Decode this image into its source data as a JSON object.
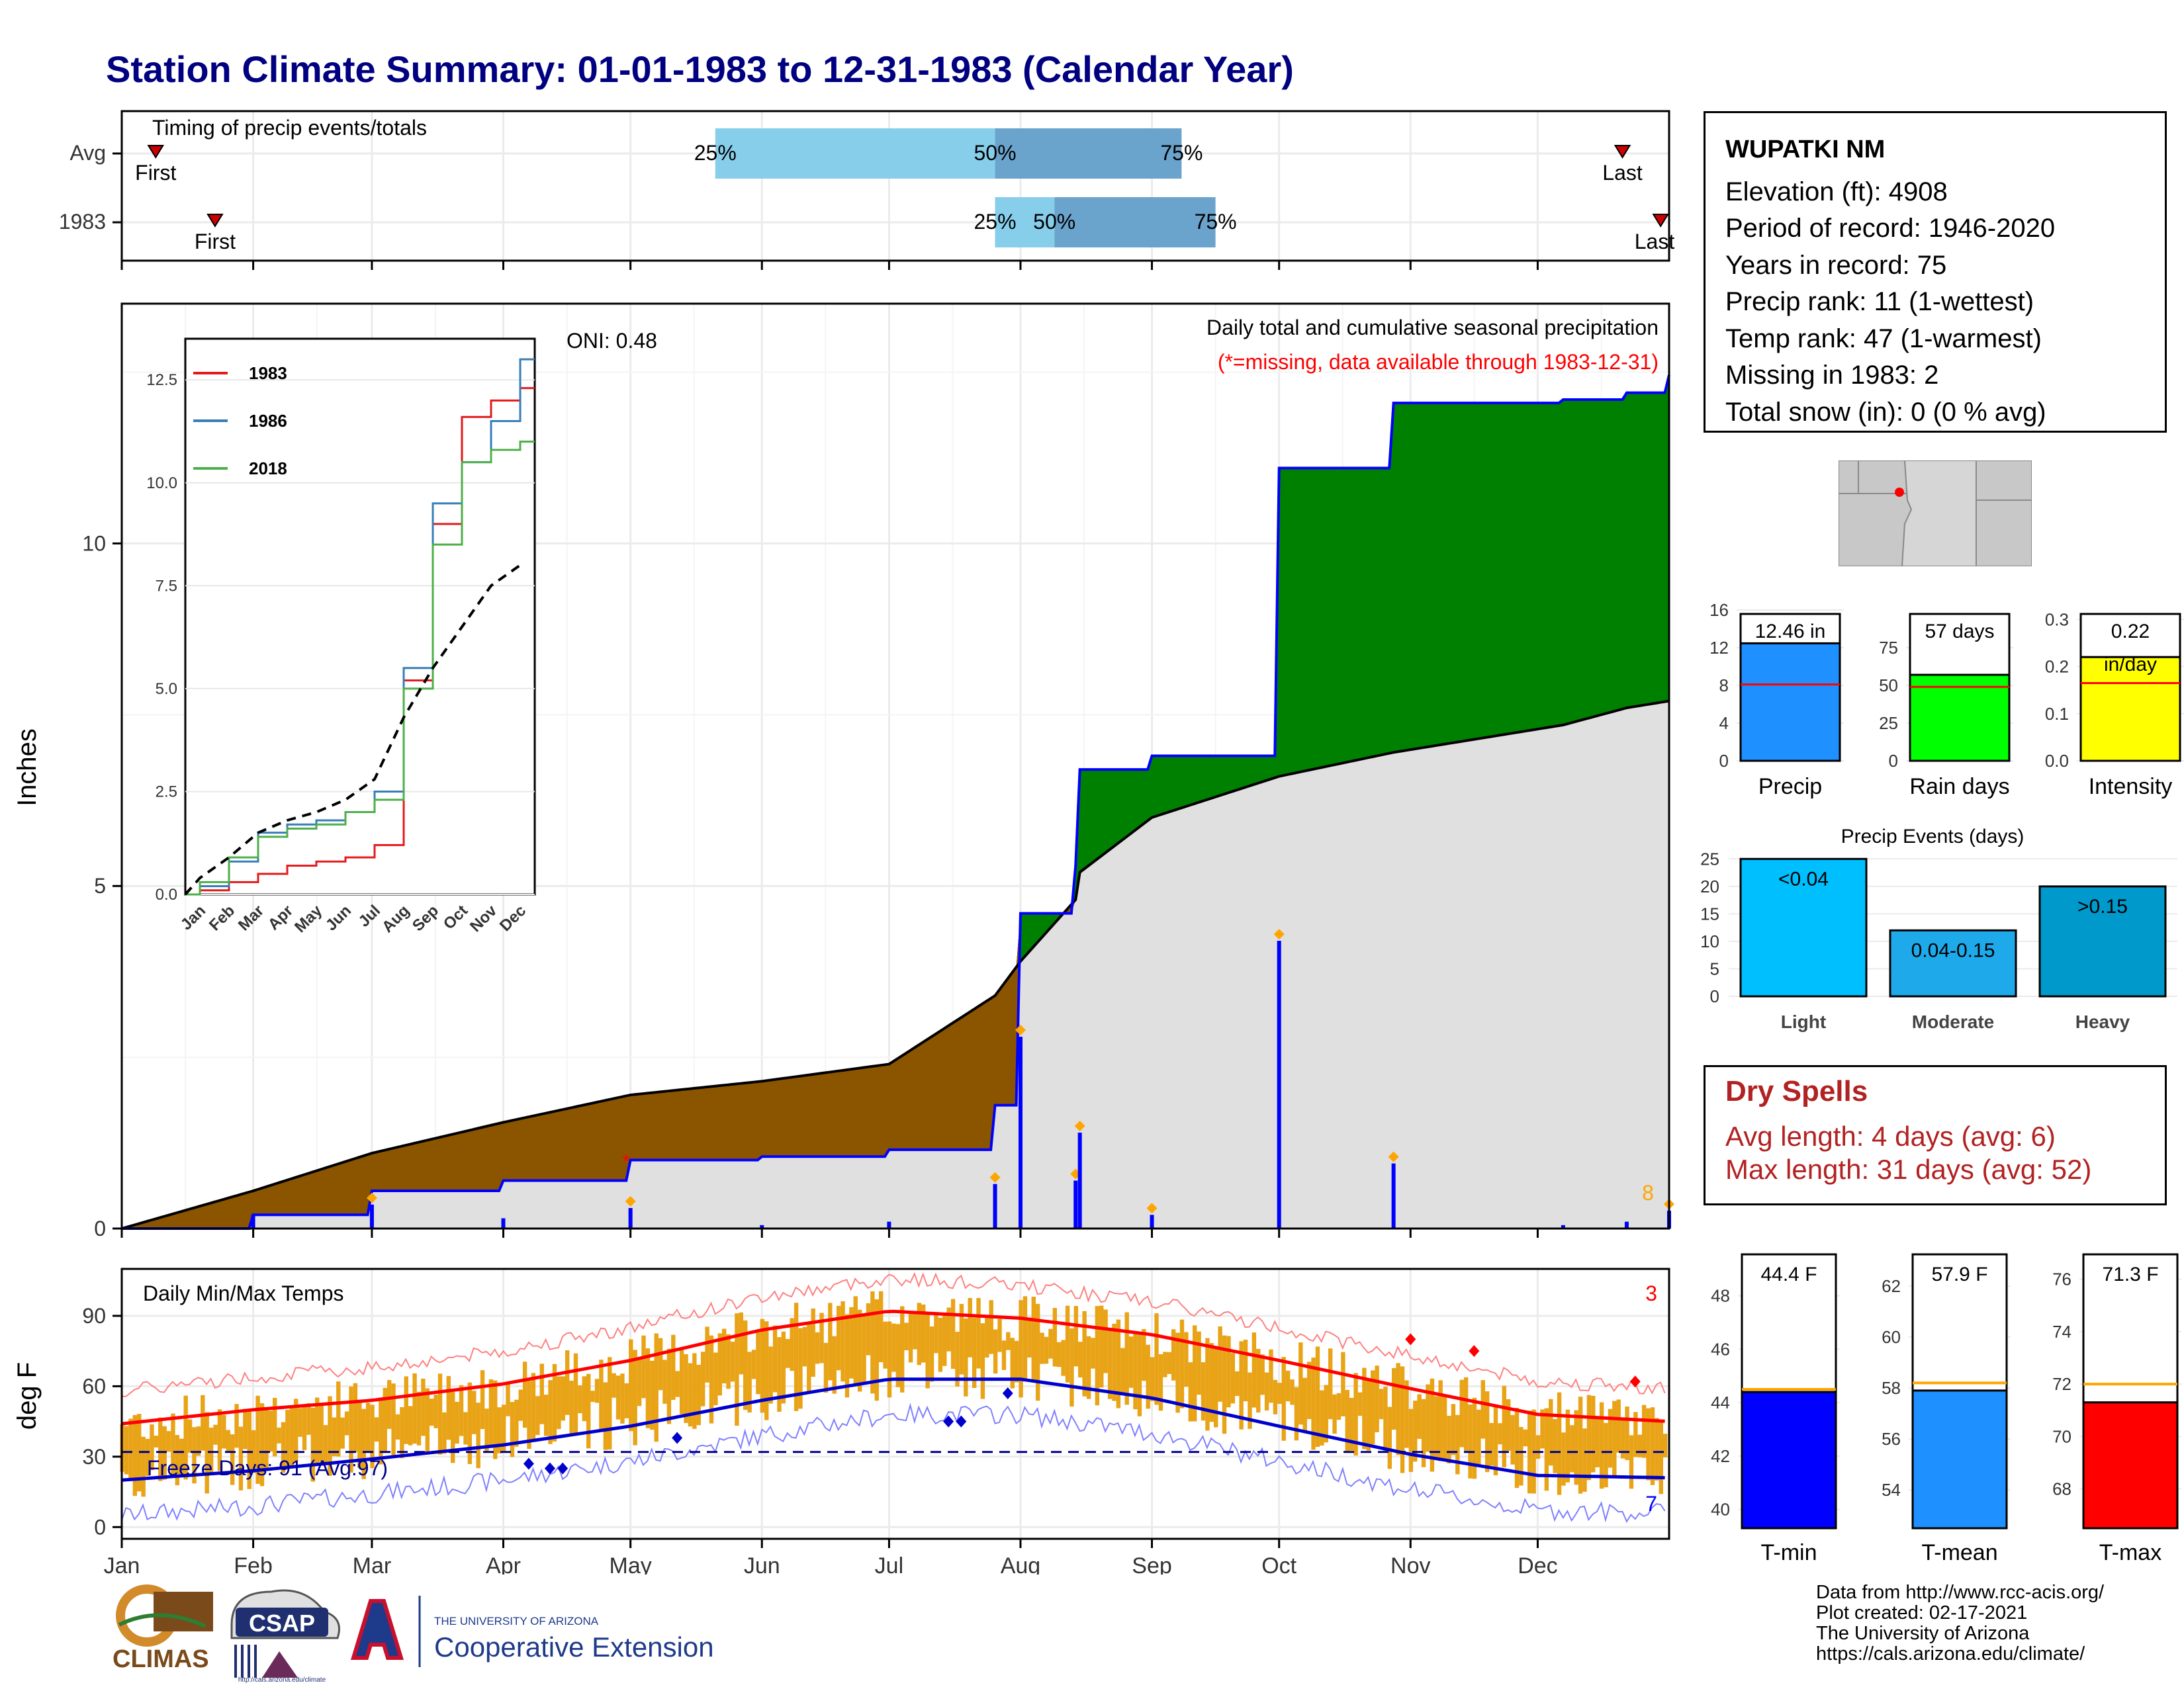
{
  "title": "Station Climate Summary: 01-01-1983 to 12-31-1983 (Calendar Year)",
  "station": {
    "name": "WUPATKI NM",
    "lines": [
      "Elevation (ft): 4908",
      "Period of record: 1946-2020",
      "Years in record: 75",
      "Precip rank: 11 (1-wettest)",
      "Temp rank: 47 (1-warmest)",
      "Missing in 1983: 2",
      "Total snow (in): 0 (0 % avg)"
    ]
  },
  "timing": {
    "title": "Timing of precip events/totals",
    "rows": [
      {
        "label": "Avg",
        "first_doy": 8,
        "p25_doy": 140,
        "p50_doy": 206,
        "p75_doy": 250,
        "last_doy": 354,
        "first_label": "First",
        "last_label": "Last"
      },
      {
        "label": "1983",
        "first_doy": 22,
        "p25_doy": 206,
        "p50_doy": 220,
        "p75_doy": 258,
        "last_doy": 363,
        "first_label": "First",
        "last_label": "Last"
      }
    ],
    "pct_labels": [
      "25%",
      "50%",
      "75%"
    ]
  },
  "precip_main": {
    "ylabel": "Inches",
    "annotation_title": "Daily total and cumulative seasonal precipitation",
    "annotation_missing": "(*=missing, data available through 1983-12-31)",
    "oni": "ONI: 0.48",
    "count_label": "8",
    "colors": {
      "deficit": "#8B5500",
      "surplus": "#008000",
      "normal": "#e0e0e0",
      "obs": "#0000ff",
      "marker": "#FFA500"
    }
  },
  "temps_main": {
    "title": "Daily Min/Max Temps",
    "ylabel": "deg F",
    "freeze_label": "Freeze Days: 91 (Avg:97)",
    "count_hot": "3",
    "count_cold": "7"
  },
  "months": [
    "Jan",
    "Feb",
    "Mar",
    "Apr",
    "May",
    "Jun",
    "Jul",
    "Aug",
    "Sep",
    "Oct",
    "Nov",
    "Dec"
  ],
  "inset_chart": {
    "legend": [
      "1983",
      "1986",
      "2018"
    ],
    "months": [
      "Jan",
      "Feb",
      "Mar",
      "Apr",
      "May",
      "Jun",
      "Jul",
      "Aug",
      "Sep",
      "Oct",
      "Nov",
      "Dec"
    ],
    "yticks": [
      "0.0",
      "2.5",
      "5.0",
      "7.5",
      "10.0",
      "12.5"
    ]
  },
  "mini_bars": {
    "precip": {
      "label": "Precip",
      "value_label": "12.46 in",
      "value": 12.46,
      "avg": 8.1,
      "ylim": [
        0,
        16
      ],
      "ticks": [
        0,
        4,
        8,
        12,
        16
      ],
      "color": "#1e90ff"
    },
    "raindays": {
      "label": "Rain days",
      "value_label": "57 days",
      "value": 57,
      "avg": 49,
      "ylim": [
        0,
        100
      ],
      "ticks": [
        0,
        25,
        50,
        75
      ],
      "color": "#00ff00"
    },
    "intensity": {
      "label": "Intensity",
      "value_label": "0.22",
      "value_label2": "in/day",
      "value": 0.22,
      "avg": 0.165,
      "ylim": [
        0,
        0.32
      ],
      "ticks": [
        "0.0",
        "0.1",
        "0.2",
        "0.3"
      ],
      "color": "#ffff00"
    }
  },
  "events": {
    "title": "Precip Events (days)",
    "categories": [
      "Light",
      "Moderate",
      "Heavy"
    ],
    "values": [
      25,
      12,
      20
    ],
    "labels": [
      "<0.04",
      "0.04-0.15",
      ">0.15"
    ],
    "yticks": [
      "0",
      "5",
      "10",
      "15",
      "20",
      "25"
    ],
    "colors": [
      "#00bfff",
      "#1eaaea",
      "#0099cc"
    ]
  },
  "dry": {
    "title": "Dry Spells",
    "avg": "Avg length: 4 days (avg: 6)",
    "max": "Max length: 31 days (avg: 52)"
  },
  "temp_bars": {
    "tmin": {
      "label": "T-min",
      "value_label": "44.4 F",
      "value": 44.4,
      "avg": 44.5,
      "ylim": [
        39.3,
        49.7
      ],
      "ticks": [
        "40",
        "42",
        "44",
        "46",
        "48"
      ],
      "color": "#0000ff"
    },
    "tmean": {
      "label": "T-mean",
      "value_label": "57.9 F",
      "value": 57.9,
      "avg": 58.2,
      "ylim": [
        52.5,
        63.4
      ],
      "ticks": [
        "54",
        "56",
        "58",
        "60",
        "62"
      ],
      "color": "#1e90ff"
    },
    "tmax": {
      "label": "T-max",
      "value_label": "71.3 F",
      "value": 71.3,
      "avg": 72.0,
      "ylim": [
        66.5,
        77.1
      ],
      "ticks": [
        "68",
        "70",
        "72",
        "74",
        "76"
      ],
      "color": "#ff0000"
    }
  },
  "logos": {
    "climas": "CLIMAS",
    "csap": "CSAP",
    "csap_url": "http://cals.arizona.edu/climate",
    "ua_small": "THE UNIVERSITY OF ARIZONA",
    "ua_big": "Cooperative Extension"
  },
  "credits": [
    "Data from http://www.rcc-acis.org/",
    "Plot created: 02-17-2021",
    "The University of Arizona",
    "https://cals.arizona.edu/climate/"
  ],
  "chart_data": [
    {
      "type": "area",
      "title": "Daily total and cumulative seasonal precipitation",
      "ylabel": "Inches",
      "ylim": [
        0,
        13.5
      ],
      "x": [
        0,
        31,
        59,
        90,
        120,
        151,
        181,
        206,
        212,
        225,
        226,
        243,
        273,
        300,
        340,
        355,
        365
      ],
      "series": [
        {
          "name": "1983",
          "values": [
            0,
            0.2,
            0.55,
            0.7,
            1.0,
            1.05,
            1.15,
            1.8,
            4.6,
            5.3,
            6.7,
            6.9,
            11.1,
            12.05,
            12.1,
            12.2,
            12.46
          ]
        },
        {
          "name": "Avg",
          "values": [
            0,
            0.55,
            1.1,
            1.55,
            1.95,
            2.15,
            2.4,
            3.4,
            3.9,
            4.8,
            5.2,
            6.0,
            6.6,
            6.95,
            7.35,
            7.6,
            7.7
          ]
        }
      ]
    },
    {
      "type": "line",
      "title": "Daily Min/Max Temps",
      "ylabel": "deg F",
      "ylim": [
        -5,
        110
      ],
      "x": [
        0,
        31,
        59,
        90,
        120,
        151,
        181,
        212,
        243,
        273,
        304,
        334,
        365
      ],
      "series": [
        {
          "name": "Avg max",
          "values": [
            44,
            50,
            54,
            61,
            71,
            84,
            92,
            89,
            82,
            71,
            59,
            48,
            45
          ]
        },
        {
          "name": "Avg min",
          "values": [
            20,
            24,
            29,
            35,
            43,
            54,
            63,
            63,
            55,
            43,
            31,
            22,
            21
          ]
        }
      ]
    },
    {
      "type": "line",
      "title": "",
      "xlabel": "",
      "ylim": [
        0,
        13.5
      ],
      "categories": [
        "Jan",
        "Feb",
        "Mar",
        "Apr",
        "May",
        "Jun",
        "Jul",
        "Aug",
        "Sep",
        "Oct",
        "Nov",
        "Dec"
      ],
      "series": [
        {
          "name": "1983",
          "values": [
            0.1,
            0.3,
            0.5,
            0.7,
            0.8,
            0.9,
            1.2,
            5.2,
            9.0,
            11.6,
            12.0,
            12.3
          ]
        },
        {
          "name": "1986",
          "values": [
            0.2,
            0.8,
            1.5,
            1.7,
            1.8,
            2.0,
            2.5,
            5.5,
            9.5,
            10.5,
            11.5,
            13.0
          ]
        },
        {
          "name": "2018",
          "values": [
            0.3,
            0.9,
            1.4,
            1.6,
            1.7,
            2.0,
            2.3,
            5.0,
            8.5,
            10.5,
            10.8,
            11.0
          ]
        }
      ]
    },
    {
      "type": "bar",
      "title": "Precip Events (days)",
      "categories": [
        "Light",
        "Moderate",
        "Heavy"
      ],
      "values": [
        25,
        12,
        20
      ],
      "ylim": [
        0,
        26
      ]
    }
  ]
}
